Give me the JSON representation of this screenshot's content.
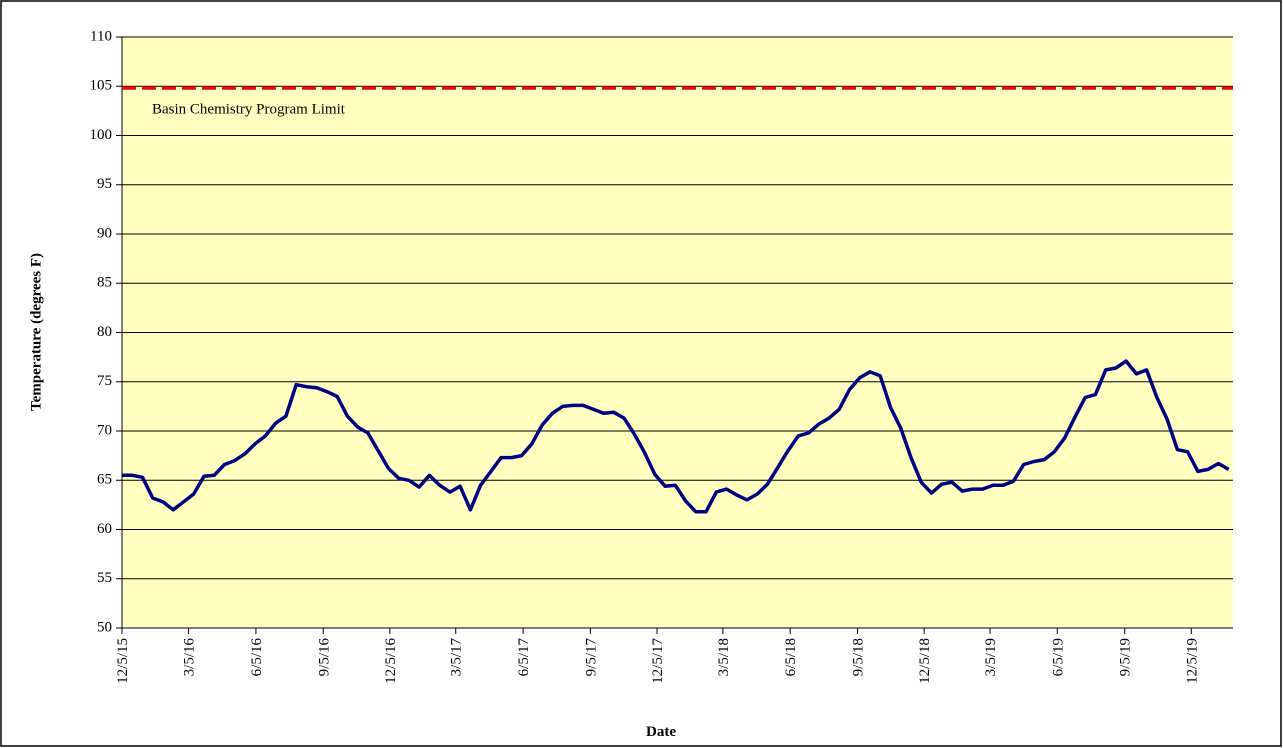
{
  "chart_data": {
    "type": "line",
    "y_axis_label": "Temperature  (degrees F)",
    "x_axis_label": "Date",
    "ylim": [
      50,
      110
    ],
    "yticks": [
      50,
      55,
      60,
      65,
      70,
      75,
      80,
      85,
      90,
      95,
      100,
      105,
      110
    ],
    "xlim": [
      "12/5/15",
      "1/31/20"
    ],
    "xticks": [
      "12/5/15",
      "3/5/16",
      "6/5/16",
      "9/5/16",
      "12/5/16",
      "3/5/17",
      "6/5/17",
      "9/5/17",
      "12/5/17",
      "3/5/18",
      "6/5/18",
      "9/5/18",
      "12/5/18",
      "3/5/19",
      "6/5/19",
      "9/5/19",
      "12/5/19"
    ],
    "grid": true,
    "plot_background": "#ffffc0",
    "limit_line": {
      "value": 104.8,
      "label": "Basin Chemistry Program Limit",
      "color": "#ff0000"
    },
    "x": [
      "12/5/15",
      "12/19/15",
      "1/2/16",
      "1/16/16",
      "1/30/16",
      "2/13/16",
      "2/27/16",
      "3/12/16",
      "3/26/16",
      "4/9/16",
      "4/23/16",
      "5/7/16",
      "5/21/16",
      "6/4/16",
      "6/18/16",
      "7/2/16",
      "7/16/16",
      "7/30/16",
      "8/13/16",
      "8/27/16",
      "9/10/16",
      "9/24/16",
      "10/8/16",
      "10/22/16",
      "11/5/16",
      "11/19/16",
      "12/3/16",
      "12/17/16",
      "12/31/16",
      "1/14/17",
      "1/28/17",
      "2/11/17",
      "2/25/17",
      "3/11/17",
      "3/25/17",
      "4/8/17",
      "4/22/17",
      "5/6/17",
      "5/20/17",
      "6/3/17",
      "6/17/17",
      "7/1/17",
      "7/15/17",
      "7/29/17",
      "8/12/17",
      "8/26/17",
      "9/9/17",
      "9/23/17",
      "10/7/17",
      "10/21/17",
      "11/4/17",
      "11/18/17",
      "12/2/17",
      "12/16/17",
      "12/30/17",
      "1/13/18",
      "1/27/18",
      "2/10/18",
      "2/24/18",
      "3/10/18",
      "3/24/18",
      "4/7/18",
      "4/21/18",
      "5/5/18",
      "5/19/18",
      "6/2/18",
      "6/16/18",
      "6/30/18",
      "7/14/18",
      "7/28/18",
      "8/11/18",
      "8/25/18",
      "9/8/18",
      "9/22/18",
      "10/6/18",
      "10/20/18",
      "11/3/18",
      "11/17/18",
      "12/1/18",
      "12/15/18",
      "12/29/18",
      "1/12/19",
      "1/26/19",
      "2/9/19",
      "2/23/19",
      "3/9/19",
      "3/23/19",
      "4/6/19",
      "4/20/19",
      "5/4/19",
      "5/18/19",
      "6/1/19",
      "6/15/19",
      "6/29/19",
      "7/13/19",
      "7/27/19",
      "8/10/19",
      "8/24/19",
      "9/7/19",
      "9/21/19",
      "10/5/19",
      "10/19/19",
      "11/2/19",
      "11/16/19",
      "11/30/19",
      "12/14/19",
      "12/28/19",
      "1/11/20",
      "1/25/20"
    ],
    "series": [
      {
        "color": "#000080",
        "values": [
          65.5,
          65.5,
          65.3,
          63.2,
          62.8,
          62.0,
          62.8,
          63.6,
          65.4,
          65.5,
          66.6,
          67,
          67.7,
          68.7,
          69.5,
          70.8,
          71.5,
          74.7,
          74.5,
          74.4,
          74,
          73.5,
          71.5,
          70.4,
          69.8,
          68,
          66.2,
          65.2,
          65,
          64.3,
          65.5,
          64.5,
          63.8,
          64.4,
          62,
          64.5,
          65.9,
          67.3,
          67.3,
          67.5,
          68.7,
          70.6,
          71.8,
          72.5,
          72.6,
          72.6,
          72.2,
          71.8,
          71.9,
          71.3,
          69.7,
          67.8,
          65.6,
          64.4,
          64.5,
          62.9,
          61.8,
          61.8,
          63.8,
          64.1,
          63.5,
          63,
          63.6,
          64.6,
          66.3,
          68,
          69.5,
          69.8,
          70.7,
          71.3,
          72.2,
          74.2,
          75.4,
          76,
          75.6,
          72.4,
          70.3,
          67.3,
          64.8,
          63.7,
          64.6,
          64.8,
          63.9,
          64.1,
          64.1,
          64.5,
          64.5,
          64.9,
          66.6,
          66.9,
          67.1,
          67.9,
          69.3,
          71.4,
          73.4,
          73.7,
          76.2,
          76.4,
          77.1,
          75.8,
          76.2,
          73.4,
          71.2,
          68.1,
          67.9,
          65.9,
          66.1,
          66.7,
          66.1
        ]
      }
    ]
  }
}
